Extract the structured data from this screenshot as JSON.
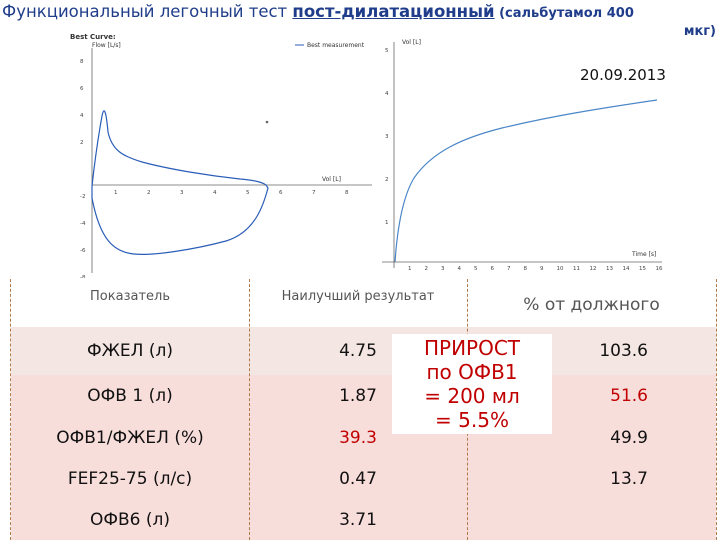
{
  "title": {
    "prefix": "Функциональный легочный тест ",
    "bold": "пост-дилатационный",
    "paren_start": " (сальбутамол 400",
    "paren_end": "мкг)"
  },
  "date": "20.09.2013",
  "flow_chart": {
    "title": "Best Curve:",
    "ylabel": "Flow [L/s]",
    "xlabel": "Vol [L]",
    "legend": "Best measurement",
    "x_ticks": [
      "1",
      "2",
      "3",
      "4",
      "5",
      "6",
      "7",
      "8"
    ],
    "y_ticks": [
      "8",
      "6",
      "4",
      "2",
      "-2",
      "-4",
      "-6",
      "-8"
    ]
  },
  "volume_chart": {
    "ylabel": "Vol [L]",
    "xlabel": "Time [s]",
    "y_ticks": [
      "5",
      "4",
      "3",
      "2",
      "1"
    ],
    "x_ticks": [
      "1",
      "2",
      "3",
      "4",
      "5",
      "6",
      "7",
      "8",
      "9",
      "10",
      "11",
      "12",
      "13",
      "14",
      "15",
      "16"
    ]
  },
  "table": {
    "headers": [
      "Показатель",
      "Наилучший результат",
      "% от должного"
    ],
    "rows": [
      {
        "name": "ФЖЕЛ (л)",
        "value": "4.75",
        "percent": "103.6"
      },
      {
        "name": "ОФВ 1 (л)",
        "value": "1.87",
        "percent": "51.6"
      },
      {
        "name": "ОФВ1/ФЖЕЛ (%)",
        "value": "39.3",
        "percent": "49.9"
      },
      {
        "name": "FEF25-75 (л/с)",
        "value": "0.47",
        "percent": "13.7"
      },
      {
        "name": "ОФВ6 (л)",
        "value": "3.71",
        "percent": ""
      }
    ]
  },
  "overlay": {
    "line1": "ПРИРОСТ",
    "line2": "по ОФВ1",
    "line3": "= 200 мл",
    "line4": "= 5.5%"
  },
  "colors": {
    "title": "#1f3d8a",
    "curve": "#2b5db8",
    "highlight": "#c00000",
    "row_a": "#f4e7e3",
    "row_b": "#f8dedb"
  }
}
